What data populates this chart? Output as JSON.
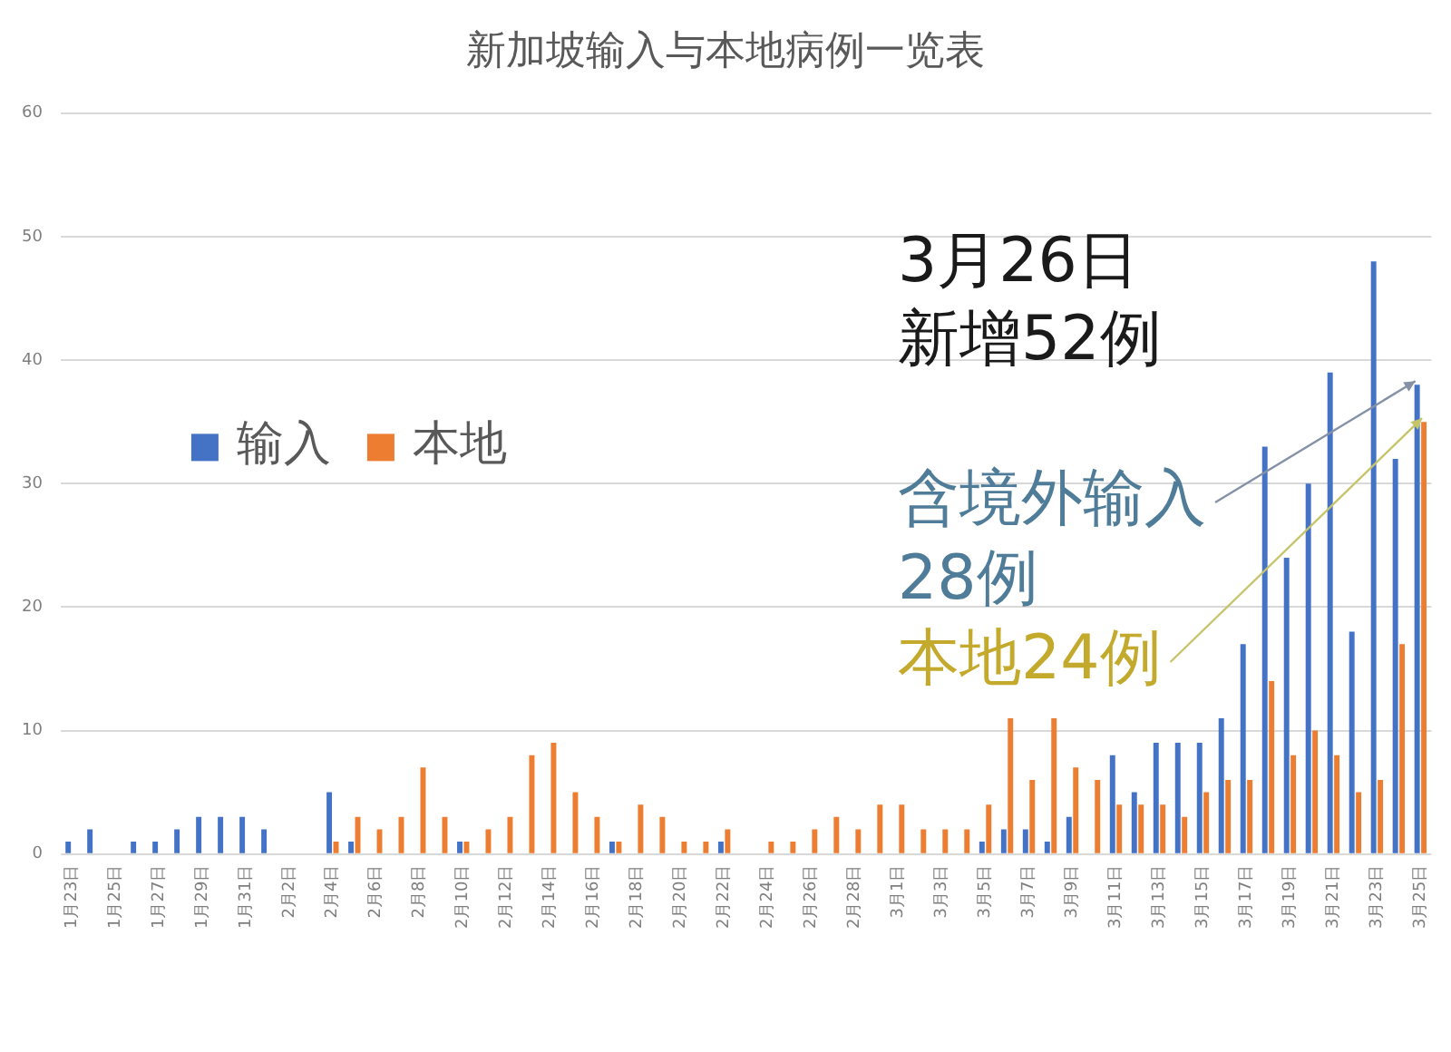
{
  "chart_data": {
    "type": "bar",
    "title": "新加坡输入与本地病例一览表",
    "categories": [
      "1月23日",
      null,
      "1月25日",
      null,
      "1月27日",
      null,
      "1月29日",
      null,
      "1月31日",
      null,
      "2月2日",
      null,
      "2月4日",
      null,
      "2月6日",
      null,
      "2月8日",
      null,
      "2月10日",
      null,
      "2月12日",
      null,
      "2月14日",
      null,
      "2月16日",
      null,
      "2月18日",
      null,
      "2月20日",
      null,
      "2月22日",
      null,
      "2月24日",
      null,
      "2月26日",
      null,
      "2月28日",
      null,
      "3月1日",
      null,
      "3月3日",
      null,
      "3月5日",
      null,
      "3月7日",
      null,
      "3月9日",
      null,
      "3月11日",
      null,
      "3月13日",
      null,
      "3月15日",
      null,
      "3月17日",
      null,
      "3月19日",
      null,
      "3月21日",
      null,
      "3月23日",
      null,
      "3月25日"
    ],
    "series": [
      {
        "name": "输入",
        "color": "#4472c4",
        "values": [
          1,
          2,
          0,
          1,
          1,
          2,
          3,
          3,
          3,
          2,
          0,
          0,
          5,
          1,
          0,
          0,
          0,
          0,
          1,
          0,
          0,
          0,
          0,
          0,
          0,
          1,
          0,
          0,
          0,
          0,
          1,
          0,
          0,
          0,
          0,
          0,
          0,
          0,
          0,
          0,
          0,
          0,
          1,
          2,
          2,
          1,
          3,
          0,
          8,
          5,
          9,
          9,
          9,
          11,
          17,
          33,
          24,
          30,
          39,
          18,
          48,
          32,
          38
        ]
      },
      {
        "name": "本地",
        "color": "#ed7d31",
        "values": [
          0,
          0,
          0,
          0,
          0,
          0,
          0,
          0,
          0,
          0,
          0,
          0,
          1,
          3,
          2,
          3,
          7,
          3,
          1,
          2,
          3,
          8,
          9,
          5,
          3,
          1,
          4,
          3,
          1,
          1,
          2,
          0,
          1,
          1,
          2,
          3,
          2,
          4,
          4,
          2,
          2,
          2,
          4,
          11,
          6,
          11,
          7,
          6,
          4,
          4,
          4,
          3,
          5,
          6,
          6,
          14,
          8,
          10,
          8,
          5,
          6,
          17,
          35
        ]
      }
    ],
    "ylim": [
      0,
      60
    ],
    "yticks": [
      0,
      10,
      20,
      30,
      40,
      50,
      60
    ],
    "grid": "y",
    "legend": "left",
    "annotations": [
      "3月26日",
      "新增52例",
      {
        "text": "含境外输入",
        "x": "3月25日",
        "y": 38
      },
      "28例",
      {
        "text": "本地24例",
        "x": "3月25日",
        "y": 35
      }
    ]
  }
}
